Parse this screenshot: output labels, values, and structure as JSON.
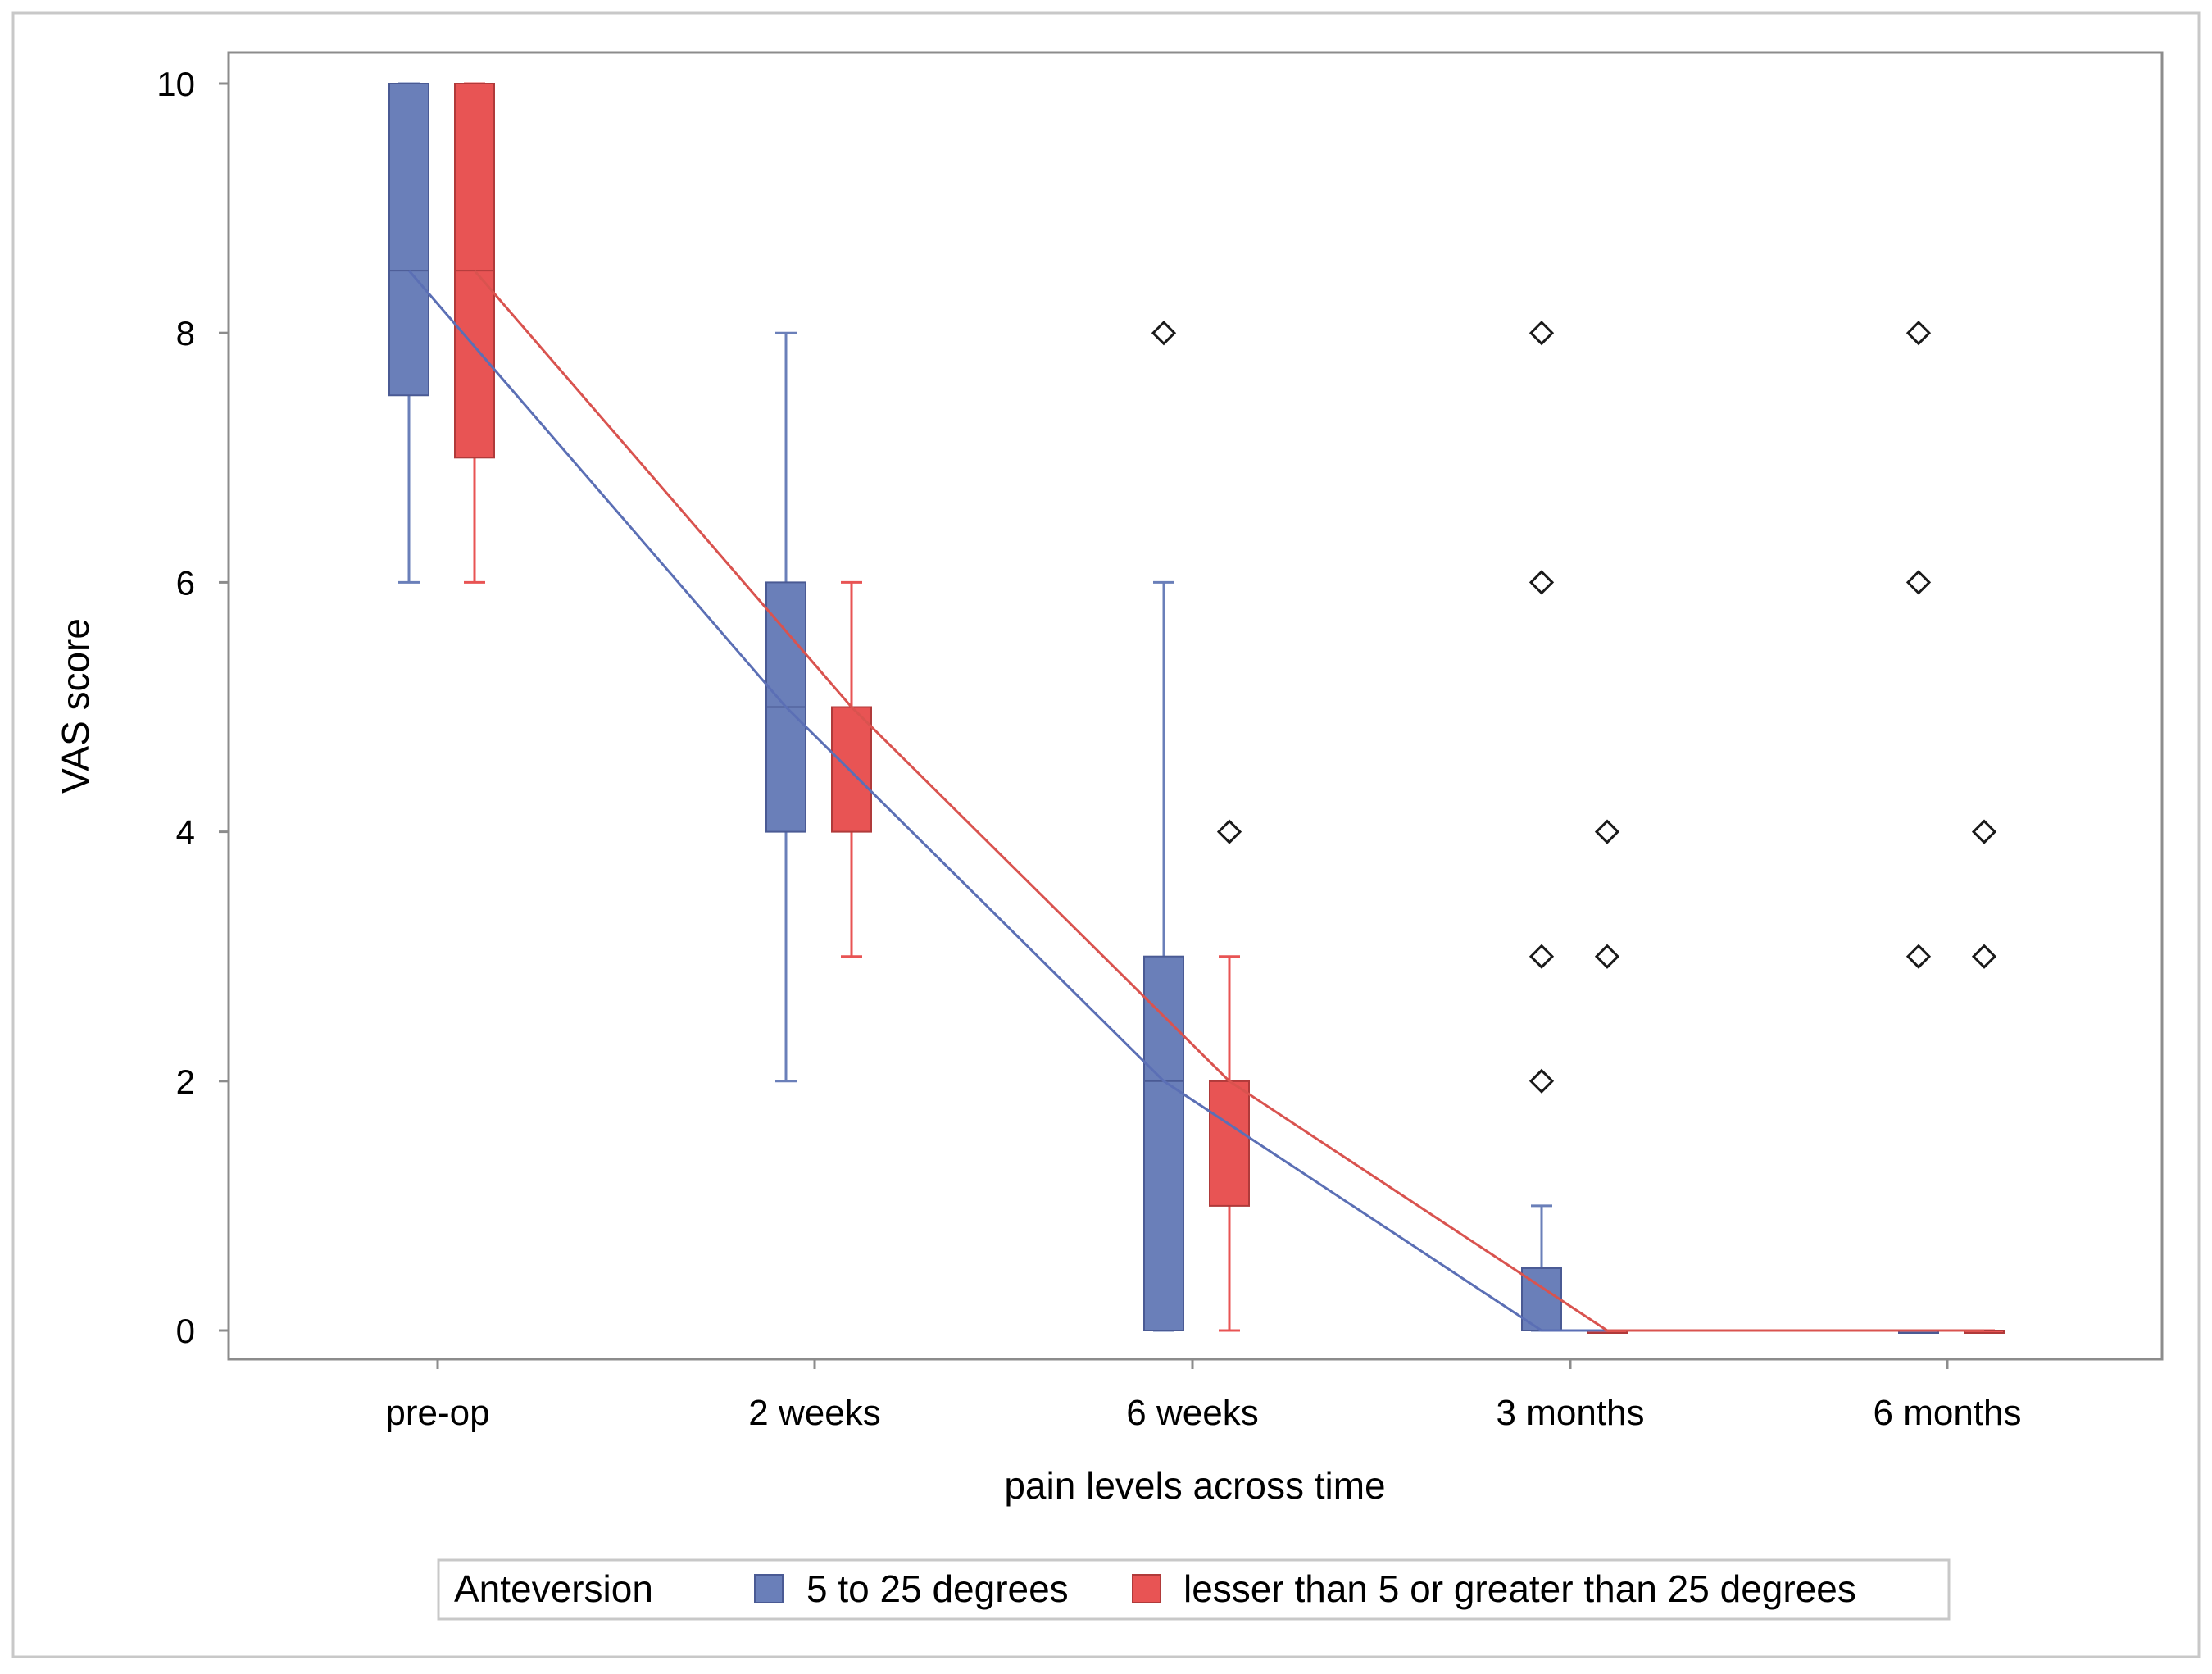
{
  "chart_data": {
    "type": "box",
    "title": "",
    "xlabel": "pain levels across time",
    "ylabel": "VAS score",
    "ylim": [
      0,
      10
    ],
    "yticks": [
      0,
      2,
      4,
      6,
      8,
      10
    ],
    "categories": [
      "pre-op",
      "2 weeks",
      "6 weeks",
      "3 months",
      "6 months"
    ],
    "grid": false,
    "legend": {
      "position": "bottom",
      "title": "Anteversion"
    },
    "series": [
      {
        "name": "5 to 25 degrees",
        "color": "#6a7fb9",
        "line_color": "#5b6fb5",
        "boxes": [
          {
            "category": "pre-op",
            "whisker_low": 6,
            "q1": 7.5,
            "median": 8.5,
            "q3": 10,
            "whisker_high": 10
          },
          {
            "category": "2 weeks",
            "whisker_low": 2,
            "q1": 4,
            "median": 5,
            "q3": 6,
            "whisker_high": 8
          },
          {
            "category": "6 weeks",
            "whisker_low": 0,
            "q1": 0,
            "median": 2,
            "q3": 3,
            "whisker_high": 6
          },
          {
            "category": "3 months",
            "whisker_low": 0,
            "q1": 0,
            "median": 0,
            "q3": 0.5,
            "whisker_high": 1
          },
          {
            "category": "6 months",
            "whisker_low": 0,
            "q1": 0,
            "median": 0,
            "q3": 0,
            "whisker_high": 0
          }
        ],
        "outliers": [
          {
            "category": "6 weeks",
            "values": [
              8
            ]
          },
          {
            "category": "3 months",
            "values": [
              8,
              6,
              3,
              2
            ]
          },
          {
            "category": "6 months",
            "values": [
              8,
              6,
              3
            ]
          }
        ],
        "trend": [
          8.5,
          5,
          2,
          0,
          0
        ]
      },
      {
        "name": "lesser than 5 or greater than 25 degrees",
        "color": "#e85454",
        "line_color": "#d9534f",
        "boxes": [
          {
            "category": "pre-op",
            "whisker_low": 6,
            "q1": 7,
            "median": 8.5,
            "q3": 10,
            "whisker_high": 10
          },
          {
            "category": "2 weeks",
            "whisker_low": 3,
            "q1": 4,
            "median": 5,
            "q3": 5,
            "whisker_high": 6
          },
          {
            "category": "6 weeks",
            "whisker_low": 0,
            "q1": 1,
            "median": 2,
            "q3": 2,
            "whisker_high": 3
          },
          {
            "category": "3 months",
            "whisker_low": 0,
            "q1": 0,
            "median": 0,
            "q3": 0,
            "whisker_high": 0
          },
          {
            "category": "6 months",
            "whisker_low": 0,
            "q1": 0,
            "median": 0,
            "q3": 0,
            "whisker_high": 0
          }
        ],
        "outliers": [
          {
            "category": "6 weeks",
            "values": [
              4
            ]
          },
          {
            "category": "3 months",
            "values": [
              4,
              3
            ]
          },
          {
            "category": "6 months",
            "values": [
              4,
              3
            ]
          }
        ],
        "trend": [
          8.5,
          5,
          2,
          0,
          0
        ]
      }
    ]
  }
}
